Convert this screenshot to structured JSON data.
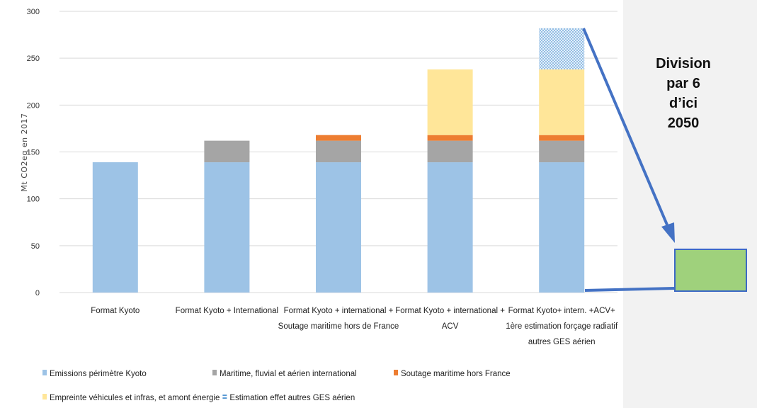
{
  "chart_data": {
    "type": "bar",
    "stacked": true,
    "title": "",
    "xlabel": "",
    "ylabel": "Mt CO2eq en 2017",
    "ylim": [
      0,
      300
    ],
    "yticks": [
      "0",
      "50",
      "100",
      "150",
      "200",
      "250",
      "300"
    ],
    "grid": true,
    "legend_position": "bottom",
    "categories": [
      [
        "Format Kyoto"
      ],
      [
        "Format Kyoto + International"
      ],
      [
        "Format Kyoto + international +",
        "Soutage maritime hors de France"
      ],
      [
        "Format Kyoto + international +",
        "ACV"
      ],
      [
        "Format Kyoto+ intern. +ACV+",
        "1ère estimation forçage radiatif",
        "autres GES aérien"
      ]
    ],
    "series": [
      {
        "name": "Emissions périmètre Kyoto",
        "color": "#9dc3e6",
        "pattern": "solid",
        "values": [
          139,
          139,
          139,
          139,
          139
        ]
      },
      {
        "name": "Maritime, fluvial et aérien international",
        "color": "#a5a5a5",
        "pattern": "solid",
        "values": [
          0,
          23,
          23,
          23,
          23
        ]
      },
      {
        "name": "Soutage maritime hors France",
        "color": "#ed7d31",
        "pattern": "solid",
        "values": [
          0,
          0,
          6,
          6,
          6
        ]
      },
      {
        "name": "Empreinte véhicules et infras, et amont énergie",
        "color": "#ffe699",
        "pattern": "solid",
        "values": [
          0,
          0,
          0,
          70,
          70
        ]
      },
      {
        "name": "Estimation effet autres GES aérien",
        "color": "#9dc3e6",
        "pattern": "dotted",
        "values": [
          0,
          0,
          0,
          0,
          44
        ]
      }
    ],
    "annotation": {
      "text": "Division\npar 6\nd’ici\n2050",
      "target_value": 47
    }
  },
  "colors": {
    "arrow": "#4472c4",
    "target_fill": "#9fd17c",
    "panel": "#f2f2f2"
  }
}
